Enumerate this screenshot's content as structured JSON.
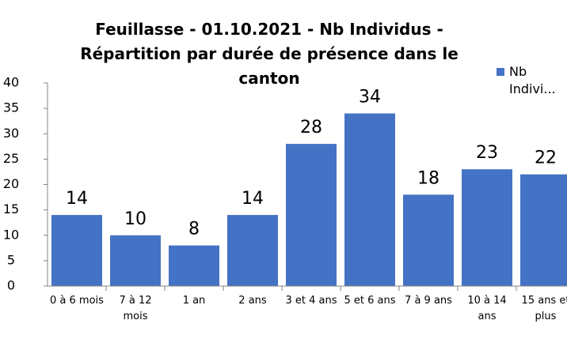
{
  "chart_data": {
    "type": "bar",
    "title": "Feuillasse - 01.10.2021 - Nb Individus - Répartition par durée de présence dans le canton",
    "categories": [
      "0 à 6 mois",
      "7 à 12 mois",
      "1 an",
      "2 ans",
      "3 et 4 ans",
      "5 et 6 ans",
      "7 à 9 ans",
      "10 à 14 ans",
      "15 ans et plus"
    ],
    "series": [
      {
        "name": "Nb Indivi...",
        "color": "#4472c4",
        "values": [
          14,
          10,
          8,
          14,
          28,
          34,
          18,
          23,
          22
        ]
      }
    ],
    "ylim": [
      0,
      40
    ],
    "yticks": [
      0,
      5,
      10,
      15,
      20,
      25,
      30,
      35,
      40
    ],
    "grid": false,
    "legend": "top-right"
  }
}
